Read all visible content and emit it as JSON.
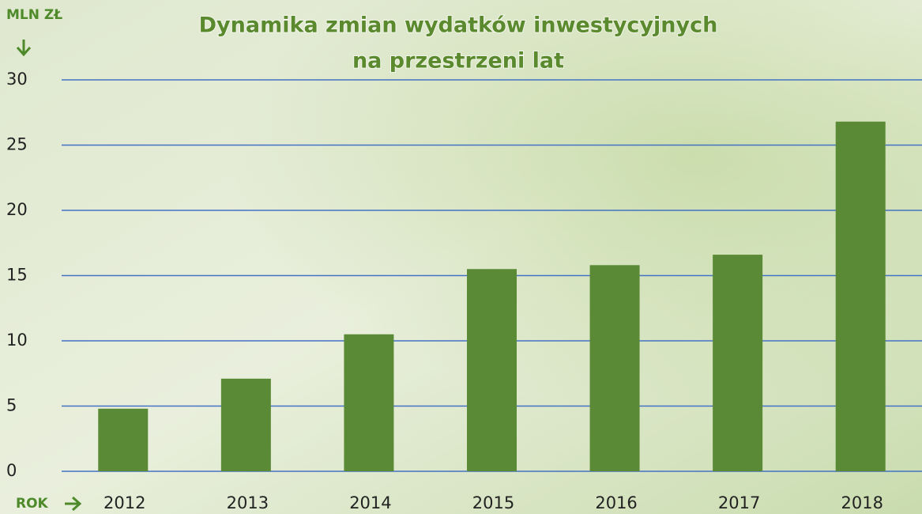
{
  "chart_data": {
    "type": "bar",
    "title": [
      "Dynamika zmian wydatków inwestycyjnych",
      "na przestrzeni lat"
    ],
    "y_label": "MLN ZŁ",
    "x_label": "ROK",
    "categories": [
      "2012",
      "2013",
      "2014",
      "2015",
      "2016",
      "2017",
      "2018"
    ],
    "values": [
      4.8,
      7.1,
      10.5,
      15.5,
      15.8,
      16.6,
      26.8
    ],
    "color": "#5a8a35",
    "ylim": [
      0,
      30
    ],
    "yticks": [
      0,
      5,
      10,
      15,
      20,
      25,
      30
    ],
    "grid": true,
    "grid_color": "#4472c4"
  }
}
